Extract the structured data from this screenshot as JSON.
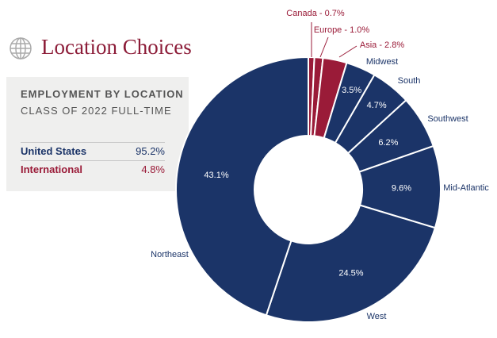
{
  "header": {
    "title": "Location Choices",
    "icon": "globe-icon"
  },
  "panel": {
    "heading": "EMPLOYMENT BY LOCATION",
    "subheading": "CLASS OF 2022 FULL-TIME",
    "rows": [
      {
        "label": "United States",
        "value": "95.2%",
        "color": "#1b3468"
      },
      {
        "label": "International",
        "value": "4.8%",
        "color": "#9a1b38"
      }
    ]
  },
  "chart_data": {
    "type": "pie",
    "donut": true,
    "title": "",
    "series": [
      {
        "name": "Canada",
        "value": 0.7,
        "label": "Canada - 0.7%",
        "color": "#9a1b38"
      },
      {
        "name": "Europe",
        "value": 1.0,
        "label": "Europe - 1.0%",
        "color": "#9a1b38"
      },
      {
        "name": "Asia",
        "value": 2.8,
        "label": "Asia - 2.8%",
        "color": "#9a1b38"
      },
      {
        "name": "Midwest",
        "value": 3.5,
        "label": "Midwest",
        "pct": "3.5%",
        "color": "#1b3468"
      },
      {
        "name": "South",
        "value": 4.7,
        "label": "South",
        "pct": "4.7%",
        "color": "#1b3468"
      },
      {
        "name": "Southwest",
        "value": 6.2,
        "label": "Southwest",
        "pct": "6.2%",
        "color": "#1b3468"
      },
      {
        "name": "Mid-Atlantic",
        "value": 9.6,
        "label": "Mid-Atlantic",
        "pct": "9.6%",
        "color": "#1b3468"
      },
      {
        "name": "West",
        "value": 24.5,
        "label": "West",
        "pct": "24.5%",
        "color": "#1b3468"
      },
      {
        "name": "Northeast",
        "value": 43.1,
        "label": "Northeast",
        "pct": "43.1%",
        "color": "#1b3468"
      }
    ]
  }
}
